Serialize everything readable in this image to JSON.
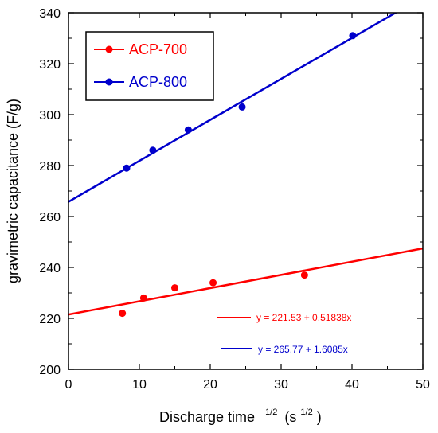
{
  "chart_data": {
    "type": "scatter",
    "xlabel_main": "Discharge time",
    "xlabel_sup": "1/2",
    "xlabel_unit_open": "(s",
    "xlabel_unit_sup": "1/2",
    "xlabel_unit_close": ")",
    "ylabel": "gravimetric capacitance (F/g)",
    "xlim": [
      0,
      50
    ],
    "ylim": [
      200,
      340
    ],
    "xticks": [
      0,
      10,
      20,
      30,
      40,
      50
    ],
    "yticks": [
      200,
      220,
      240,
      260,
      280,
      300,
      320,
      340
    ],
    "legend_position": "top-left",
    "series": [
      {
        "name": "ACP-700",
        "color": "#ff0000",
        "x": [
          7.6,
          10.6,
          15.0,
          20.4,
          33.3
        ],
        "y": [
          222,
          228,
          232,
          234,
          237
        ],
        "fit": {
          "intercept": 221.53,
          "slope": 0.51838,
          "label": "y = 221.53 + 0.51838x"
        }
      },
      {
        "name": "ACP-800",
        "color": "#0000cc",
        "x": [
          8.2,
          11.9,
          16.9,
          24.5,
          40.1
        ],
        "y": [
          279,
          286,
          294,
          303,
          331
        ],
        "fit": {
          "intercept": 265.77,
          "slope": 1.6085,
          "label": "y = 265.77 + 1.6085x"
        }
      }
    ]
  }
}
